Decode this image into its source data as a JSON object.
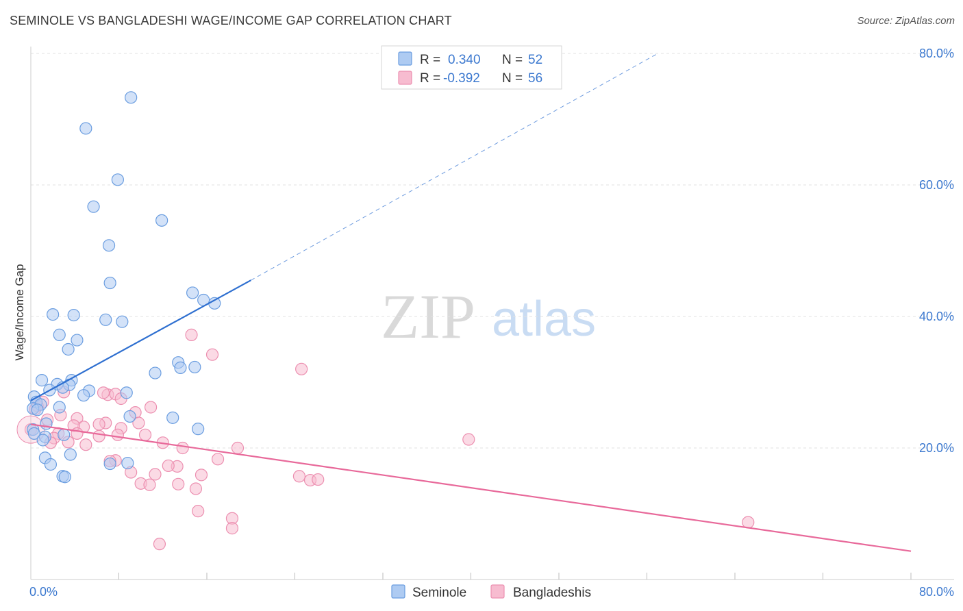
{
  "header": {
    "title": "SEMINOLE VS BANGLADESHI WAGE/INCOME GAP CORRELATION CHART",
    "source": "Source: ZipAtlas.com"
  },
  "watermark": {
    "part1": "ZIP",
    "part2": "atlas"
  },
  "colors": {
    "seminole_fill": "#aecbf2",
    "seminole_stroke": "#6a9de0",
    "seminole_line": "#2e6fd0",
    "bangla_fill": "#f7bcd0",
    "bangla_stroke": "#ec8fb0",
    "bangla_line": "#e8699a",
    "tick_label": "#3b78cf"
  },
  "chart_data": {
    "type": "scatter",
    "title": "SEMINOLE VS BANGLADESHI WAGE/INCOME GAP CORRELATION CHART",
    "xlabel": "",
    "ylabel": "Wage/Income Gap",
    "xlim": [
      0,
      0.8
    ],
    "ylim": [
      0,
      0.8
    ],
    "x_tick_labels": [
      "0.0%",
      "80.0%"
    ],
    "y_ticks": [
      {
        "value": 0.2,
        "label": "20.0%"
      },
      {
        "value": 0.4,
        "label": "40.0%"
      },
      {
        "value": 0.6,
        "label": "60.0%"
      },
      {
        "value": 0.8,
        "label": "80.0%"
      }
    ],
    "grid": true,
    "legend": {
      "entries": [
        {
          "r_label": "R =",
          "r_value": "0.340",
          "n_label": "N =",
          "n_value": "52"
        },
        {
          "r_label": "R =",
          "r_value": "-0.392",
          "n_label": "N =",
          "n_value": "56"
        }
      ],
      "bottom": [
        "Seminole",
        "Bangladeshis"
      ]
    },
    "series": [
      {
        "name": "Seminole",
        "r": 0.34,
        "n": 52,
        "trend": {
          "x0": 0.0,
          "y0": 0.272,
          "x1": 0.2,
          "y1": 0.455,
          "dash_x1": 0.57,
          "dash_y1": 0.8
        },
        "points": [
          [
            0.091,
            0.733
          ],
          [
            0.05,
            0.686
          ],
          [
            0.079,
            0.608
          ],
          [
            0.057,
            0.567
          ],
          [
            0.119,
            0.546
          ],
          [
            0.071,
            0.508
          ],
          [
            0.072,
            0.451
          ],
          [
            0.147,
            0.436
          ],
          [
            0.157,
            0.425
          ],
          [
            0.167,
            0.42
          ],
          [
            0.02,
            0.403
          ],
          [
            0.039,
            0.402
          ],
          [
            0.068,
            0.395
          ],
          [
            0.083,
            0.392
          ],
          [
            0.026,
            0.372
          ],
          [
            0.042,
            0.364
          ],
          [
            0.034,
            0.35
          ],
          [
            0.134,
            0.33
          ],
          [
            0.136,
            0.322
          ],
          [
            0.149,
            0.323
          ],
          [
            0.113,
            0.314
          ],
          [
            0.01,
            0.303
          ],
          [
            0.024,
            0.297
          ],
          [
            0.037,
            0.303
          ],
          [
            0.035,
            0.296
          ],
          [
            0.029,
            0.292
          ],
          [
            0.017,
            0.288
          ],
          [
            0.053,
            0.287
          ],
          [
            0.048,
            0.28
          ],
          [
            0.087,
            0.284
          ],
          [
            0.003,
            0.278
          ],
          [
            0.005,
            0.27
          ],
          [
            0.009,
            0.266
          ],
          [
            0.002,
            0.26
          ],
          [
            0.006,
            0.258
          ],
          [
            0.026,
            0.262
          ],
          [
            0.09,
            0.248
          ],
          [
            0.129,
            0.246
          ],
          [
            0.014,
            0.237
          ],
          [
            0.152,
            0.229
          ],
          [
            0.002,
            0.228
          ],
          [
            0.003,
            0.222
          ],
          [
            0.013,
            0.217
          ],
          [
            0.03,
            0.22
          ],
          [
            0.011,
            0.212
          ],
          [
            0.013,
            0.185
          ],
          [
            0.036,
            0.19
          ],
          [
            0.018,
            0.175
          ],
          [
            0.072,
            0.176
          ],
          [
            0.088,
            0.177
          ],
          [
            0.029,
            0.157
          ],
          [
            0.031,
            0.156
          ]
        ]
      },
      {
        "name": "Bangladeshis",
        "r": -0.392,
        "n": 56,
        "trend": {
          "x0": 0.0,
          "y0": 0.236,
          "x1": 0.8,
          "y1": 0.043
        },
        "points": [
          [
            0.146,
            0.372
          ],
          [
            0.165,
            0.342
          ],
          [
            0.246,
            0.32
          ],
          [
            0.03,
            0.285
          ],
          [
            0.07,
            0.281
          ],
          [
            0.077,
            0.282
          ],
          [
            0.082,
            0.275
          ],
          [
            0.066,
            0.284
          ],
          [
            0.011,
            0.27
          ],
          [
            0.006,
            0.264
          ],
          [
            0.004,
            0.259
          ],
          [
            0.109,
            0.262
          ],
          [
            0.095,
            0.254
          ],
          [
            0.027,
            0.25
          ],
          [
            0.042,
            0.245
          ],
          [
            0.015,
            0.243
          ],
          [
            0.068,
            0.238
          ],
          [
            0.062,
            0.236
          ],
          [
            0.098,
            0.238
          ],
          [
            0.048,
            0.232
          ],
          [
            0.039,
            0.234
          ],
          [
            0.082,
            0.23
          ],
          [
            0.025,
            0.222
          ],
          [
            0.042,
            0.222
          ],
          [
            0.062,
            0.218
          ],
          [
            0.079,
            0.22
          ],
          [
            0.104,
            0.22
          ],
          [
            0.398,
            0.213
          ],
          [
            0.021,
            0.215
          ],
          [
            0.018,
            0.208
          ],
          [
            0.034,
            0.209
          ],
          [
            0.05,
            0.205
          ],
          [
            0.12,
            0.208
          ],
          [
            0.138,
            0.2
          ],
          [
            0.188,
            0.2
          ],
          [
            0.17,
            0.183
          ],
          [
            0.077,
            0.181
          ],
          [
            0.072,
            0.18
          ],
          [
            0.133,
            0.172
          ],
          [
            0.125,
            0.173
          ],
          [
            0.091,
            0.163
          ],
          [
            0.113,
            0.16
          ],
          [
            0.155,
            0.159
          ],
          [
            0.244,
            0.157
          ],
          [
            0.254,
            0.151
          ],
          [
            0.261,
            0.152
          ],
          [
            0.1,
            0.146
          ],
          [
            0.108,
            0.144
          ],
          [
            0.134,
            0.145
          ],
          [
            0.15,
            0.138
          ],
          [
            0.152,
            0.104
          ],
          [
            0.183,
            0.093
          ],
          [
            0.183,
            0.078
          ],
          [
            0.652,
            0.087
          ],
          [
            0.117,
            0.054
          ],
          [
            0.0,
            0.228
          ]
        ]
      }
    ]
  }
}
